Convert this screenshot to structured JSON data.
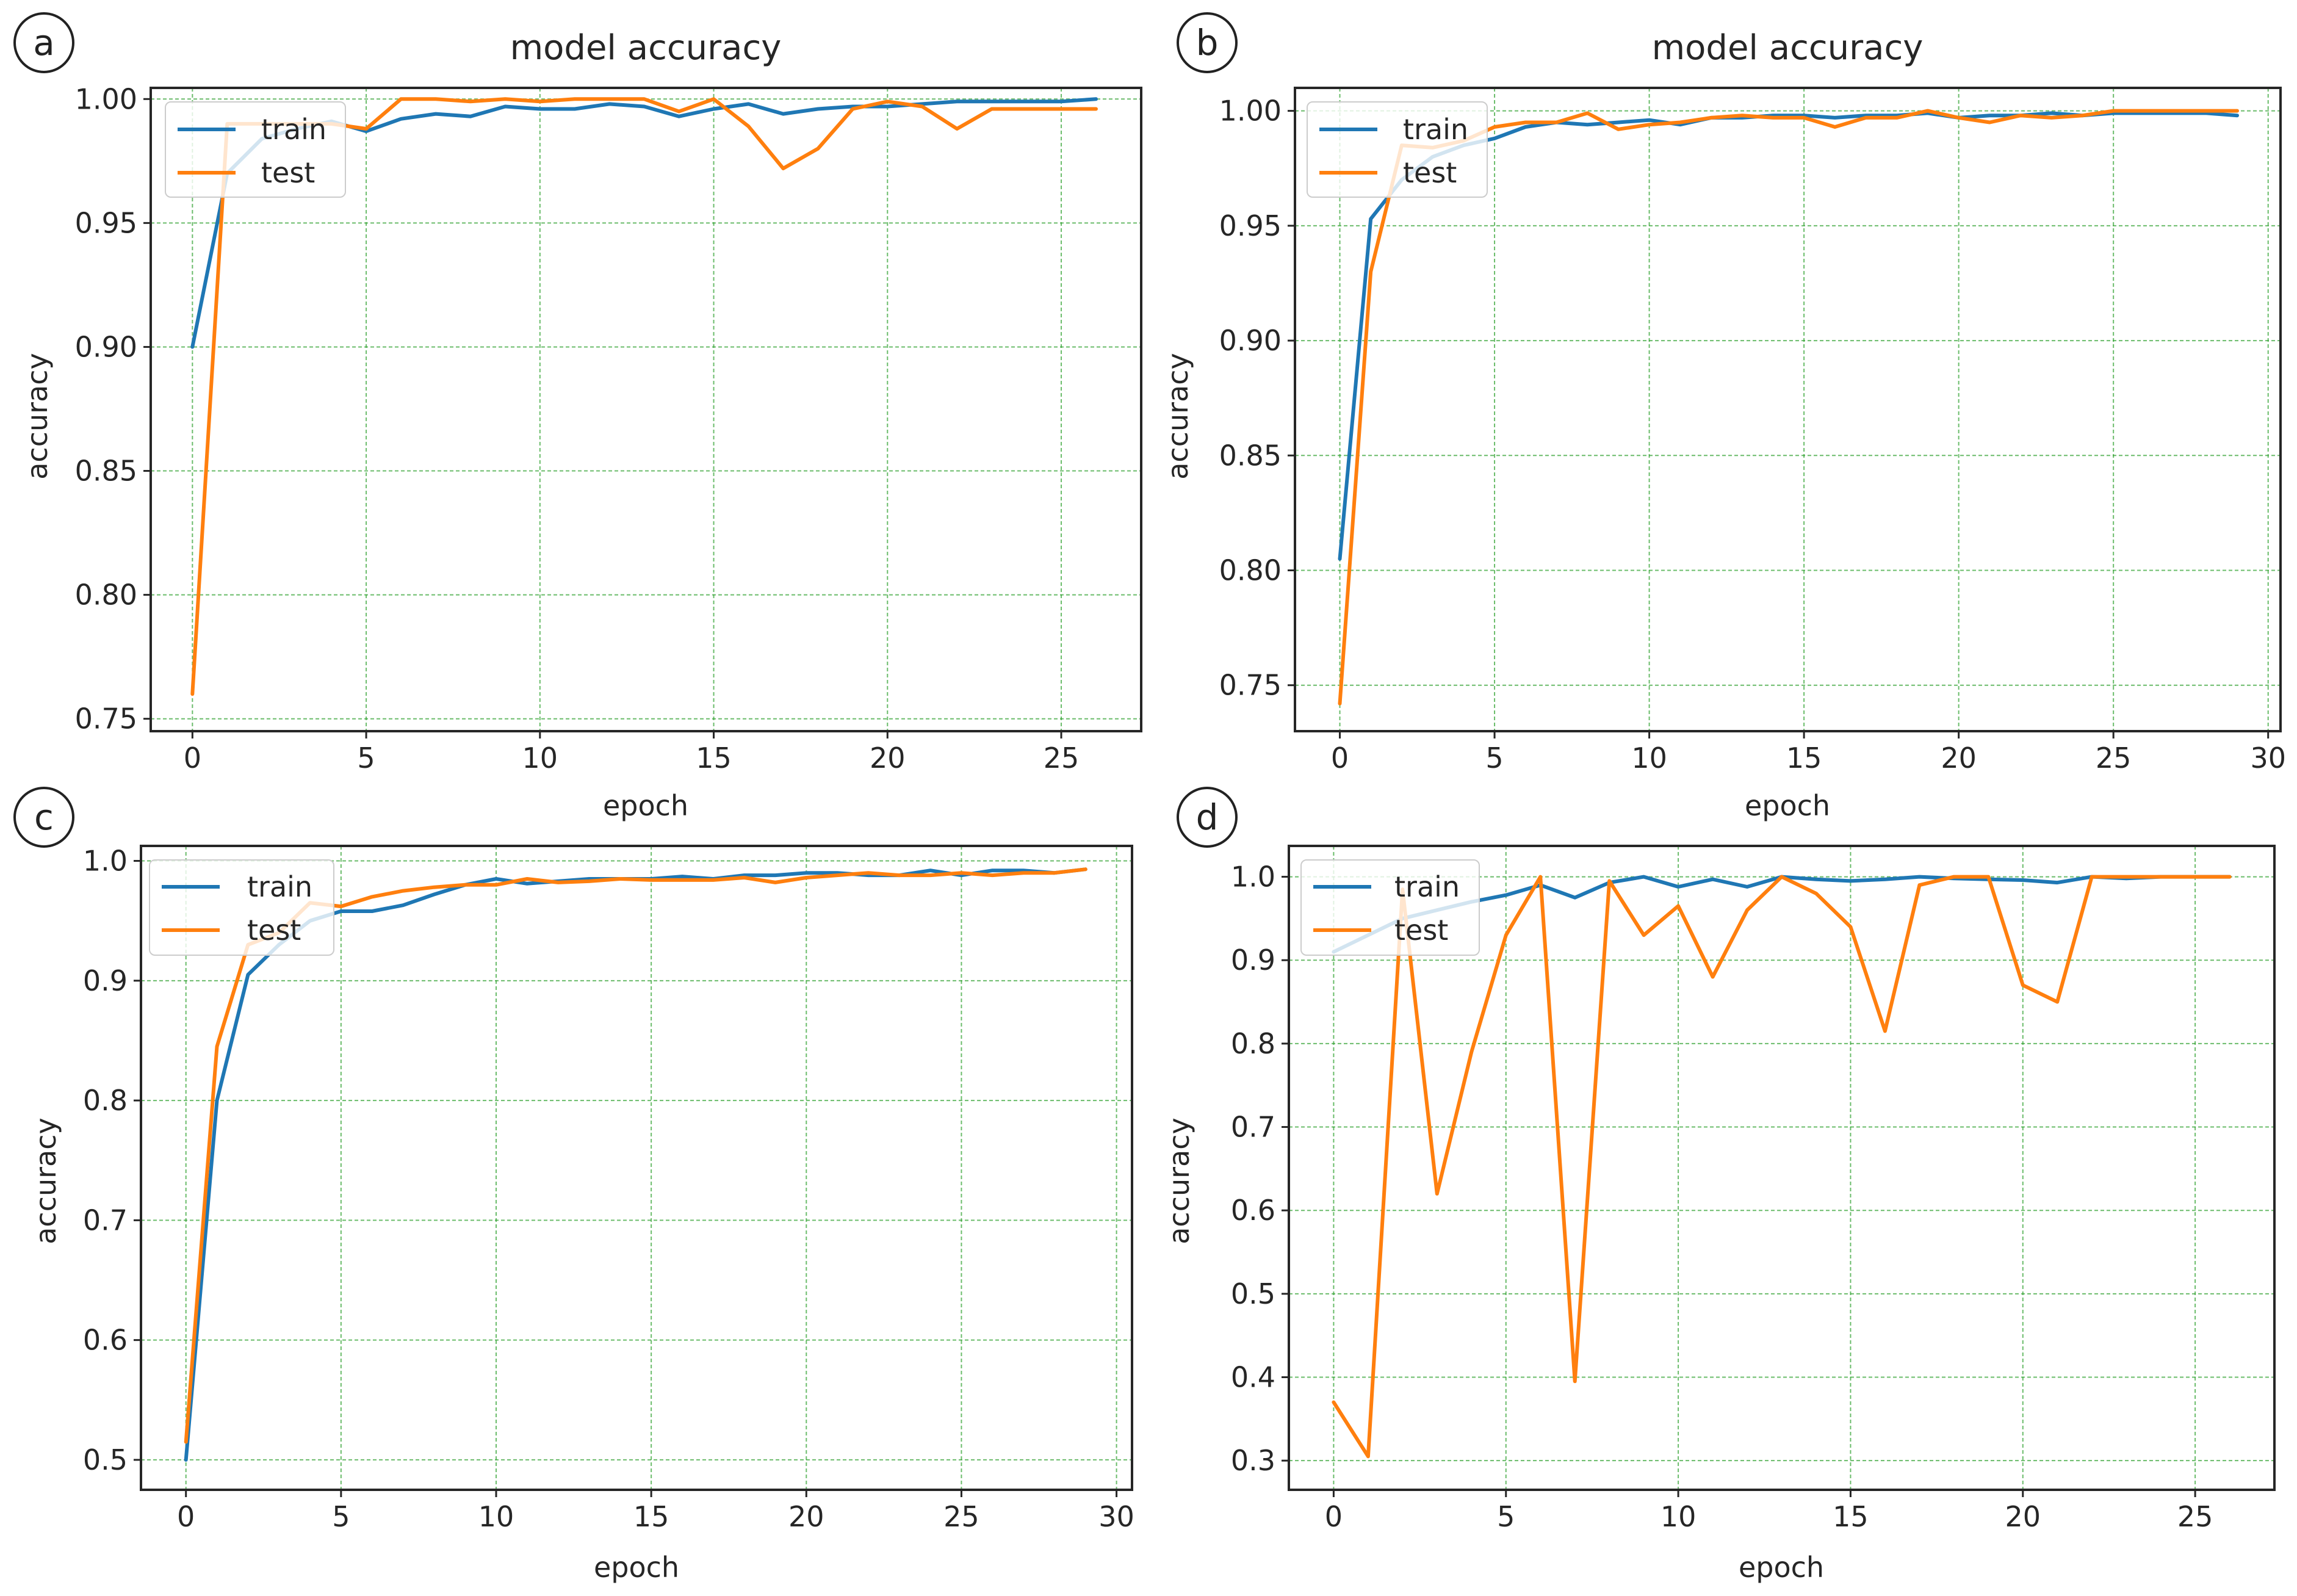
{
  "chart_data": [
    {
      "panel_label": "a",
      "type": "line",
      "title": "model accuracy",
      "xlabel": "epoch",
      "ylabel": "accuracy",
      "xlim": [
        -1.2,
        27.3
      ],
      "ylim": [
        0.745,
        1.0045
      ],
      "xticks": [
        0,
        5,
        10,
        15,
        20,
        25
      ],
      "xtick_labels": [
        "0",
        "5",
        "10",
        "15",
        "20",
        "25"
      ],
      "yticks": [
        0.75,
        0.8,
        0.85,
        0.9,
        0.95,
        1.0
      ],
      "ytick_labels": [
        "0.75",
        "0.80",
        "0.85",
        "0.90",
        "0.95",
        "1.00"
      ],
      "grid": true,
      "legend": "upper left",
      "series": [
        {
          "name": "train",
          "color": "#1f77b4",
          "x": [
            0,
            1,
            2,
            3,
            4,
            5,
            6,
            7,
            8,
            9,
            10,
            11,
            12,
            13,
            14,
            15,
            16,
            17,
            18,
            19,
            20,
            21,
            22,
            23,
            24,
            25,
            26
          ],
          "values": [
            0.9,
            0.97,
            0.984,
            0.988,
            0.991,
            0.987,
            0.992,
            0.994,
            0.993,
            0.997,
            0.996,
            0.996,
            0.998,
            0.997,
            0.993,
            0.996,
            0.998,
            0.994,
            0.996,
            0.997,
            0.997,
            0.998,
            0.999,
            0.999,
            0.999,
            0.999,
            1.0
          ]
        },
        {
          "name": "test",
          "color": "#ff7f0e",
          "x": [
            0,
            1,
            2,
            3,
            4,
            5,
            6,
            7,
            8,
            9,
            10,
            11,
            12,
            13,
            14,
            15,
            16,
            17,
            18,
            19,
            20,
            21,
            22,
            23,
            24,
            25,
            26
          ],
          "values": [
            0.76,
            0.99,
            0.99,
            0.99,
            0.99,
            0.988,
            1.0,
            1.0,
            0.999,
            1.0,
            0.999,
            1.0,
            1.0,
            1.0,
            0.995,
            1.0,
            0.989,
            0.972,
            0.98,
            0.996,
            0.999,
            0.997,
            0.988,
            0.996,
            0.996,
            0.996,
            0.996
          ]
        }
      ]
    },
    {
      "panel_label": "b",
      "type": "line",
      "title": "model accuracy",
      "xlabel": "epoch",
      "ylabel": "accuracy",
      "xlim": [
        -1.45,
        30.4
      ],
      "ylim": [
        0.73,
        1.01
      ],
      "xticks": [
        0,
        5,
        10,
        15,
        20,
        25,
        30
      ],
      "xtick_labels": [
        "0",
        "5",
        "10",
        "15",
        "20",
        "25",
        "30"
      ],
      "yticks": [
        0.75,
        0.8,
        0.85,
        0.9,
        0.95,
        1.0
      ],
      "ytick_labels": [
        "0.75",
        "0.80",
        "0.85",
        "0.90",
        "0.95",
        "1.00"
      ],
      "grid": true,
      "legend": "upper left",
      "series": [
        {
          "name": "train",
          "color": "#1f77b4",
          "x": [
            0,
            1,
            2,
            3,
            4,
            5,
            6,
            7,
            8,
            9,
            10,
            11,
            12,
            13,
            14,
            15,
            16,
            17,
            18,
            19,
            20,
            21,
            22,
            23,
            24,
            25,
            26,
            27,
            28,
            29
          ],
          "values": [
            0.805,
            0.953,
            0.97,
            0.98,
            0.985,
            0.988,
            0.993,
            0.995,
            0.994,
            0.995,
            0.996,
            0.994,
            0.997,
            0.997,
            0.998,
            0.998,
            0.997,
            0.998,
            0.998,
            0.999,
            0.997,
            0.998,
            0.998,
            0.999,
            0.998,
            0.999,
            0.999,
            0.999,
            0.999,
            0.998
          ]
        },
        {
          "name": "test",
          "color": "#ff7f0e",
          "x": [
            0,
            1,
            2,
            3,
            4,
            5,
            6,
            7,
            8,
            9,
            10,
            11,
            12,
            13,
            14,
            15,
            16,
            17,
            18,
            19,
            20,
            21,
            22,
            23,
            24,
            25,
            26,
            27,
            28,
            29
          ],
          "values": [
            0.742,
            0.93,
            0.985,
            0.984,
            0.987,
            0.993,
            0.995,
            0.995,
            0.999,
            0.992,
            0.994,
            0.995,
            0.997,
            0.998,
            0.997,
            0.997,
            0.993,
            0.997,
            0.997,
            1.0,
            0.997,
            0.995,
            0.998,
            0.997,
            0.998,
            1.0,
            1.0,
            1.0,
            1.0,
            1.0
          ]
        }
      ]
    },
    {
      "panel_label": "c",
      "type": "line",
      "title": "",
      "xlabel": "epoch",
      "ylabel": "accuracy",
      "xlim": [
        -1.45,
        30.5
      ],
      "ylim": [
        0.475,
        1.0125
      ],
      "xticks": [
        0,
        5,
        10,
        15,
        20,
        25,
        30
      ],
      "xtick_labels": [
        "0",
        "5",
        "10",
        "15",
        "20",
        "25",
        "30"
      ],
      "yticks": [
        0.5,
        0.6,
        0.7,
        0.8,
        0.9,
        1.0
      ],
      "ytick_labels": [
        "0.5",
        "0.6",
        "0.7",
        "0.8",
        "0.9",
        "1.0"
      ],
      "grid": true,
      "legend": "upper left",
      "series": [
        {
          "name": "train",
          "color": "#1f77b4",
          "x": [
            0,
            1,
            2,
            3,
            4,
            5,
            6,
            7,
            8,
            9,
            10,
            11,
            12,
            13,
            14,
            15,
            16,
            17,
            18,
            19,
            20,
            21,
            22,
            23,
            24,
            25,
            26,
            27,
            28,
            29
          ],
          "values": [
            0.5,
            0.8,
            0.905,
            0.93,
            0.95,
            0.958,
            0.958,
            0.963,
            0.972,
            0.98,
            0.985,
            0.981,
            0.983,
            0.985,
            0.985,
            0.985,
            0.987,
            0.985,
            0.988,
            0.988,
            0.99,
            0.99,
            0.988,
            0.988,
            0.992,
            0.988,
            0.992,
            0.992,
            0.99,
            0.993
          ]
        },
        {
          "name": "test",
          "color": "#ff7f0e",
          "x": [
            0,
            1,
            2,
            3,
            4,
            5,
            6,
            7,
            8,
            9,
            10,
            11,
            12,
            13,
            14,
            15,
            16,
            17,
            18,
            19,
            20,
            21,
            22,
            23,
            24,
            25,
            26,
            27,
            28,
            29
          ],
          "values": [
            0.515,
            0.845,
            0.93,
            0.94,
            0.965,
            0.962,
            0.97,
            0.975,
            0.978,
            0.98,
            0.98,
            0.985,
            0.982,
            0.983,
            0.985,
            0.984,
            0.984,
            0.984,
            0.986,
            0.982,
            0.986,
            0.988,
            0.99,
            0.988,
            0.988,
            0.99,
            0.988,
            0.99,
            0.99,
            0.993
          ]
        }
      ]
    },
    {
      "panel_label": "d",
      "type": "line",
      "title": "",
      "xlabel": "epoch",
      "ylabel": "accuracy",
      "xlim": [
        -1.3,
        27.3
      ],
      "ylim": [
        0.265,
        1.037
      ],
      "xticks": [
        0,
        5,
        10,
        15,
        20,
        25
      ],
      "xtick_labels": [
        "0",
        "5",
        "10",
        "15",
        "20",
        "25"
      ],
      "yticks": [
        0.3,
        0.4,
        0.5,
        0.6,
        0.7,
        0.8,
        0.9,
        1.0
      ],
      "ytick_labels": [
        "0.3",
        "0.4",
        "0.5",
        "0.6",
        "0.7",
        "0.8",
        "0.9",
        "1.0"
      ],
      "grid": true,
      "legend": "upper left",
      "series": [
        {
          "name": "train",
          "color": "#1f77b4",
          "x": [
            0,
            1,
            2,
            3,
            4,
            5,
            6,
            7,
            8,
            9,
            10,
            11,
            12,
            13,
            14,
            15,
            16,
            17,
            18,
            19,
            20,
            21,
            22,
            23,
            24,
            25,
            26
          ],
          "values": [
            0.91,
            0.93,
            0.95,
            0.96,
            0.97,
            0.978,
            0.99,
            0.975,
            0.993,
            1.0,
            0.988,
            0.997,
            0.988,
            1.0,
            0.997,
            0.995,
            0.997,
            1.0,
            0.998,
            0.997,
            0.996,
            0.993,
            1.0,
            0.998,
            1.0,
            1.0,
            1.0
          ]
        },
        {
          "name": "test",
          "color": "#ff7f0e",
          "x": [
            0,
            1,
            2,
            3,
            4,
            5,
            6,
            7,
            8,
            9,
            10,
            11,
            12,
            13,
            14,
            15,
            16,
            17,
            18,
            19,
            20,
            21,
            22,
            23,
            24,
            25,
            26
          ],
          "values": [
            0.37,
            0.305,
            0.985,
            0.62,
            0.79,
            0.93,
            1.0,
            0.395,
            0.995,
            0.93,
            0.965,
            0.88,
            0.96,
            1.0,
            0.98,
            0.94,
            0.815,
            0.99,
            1.0,
            1.0,
            0.87,
            0.85,
            1.0,
            1.0,
            1.0,
            1.0,
            1.0
          ]
        }
      ]
    }
  ]
}
